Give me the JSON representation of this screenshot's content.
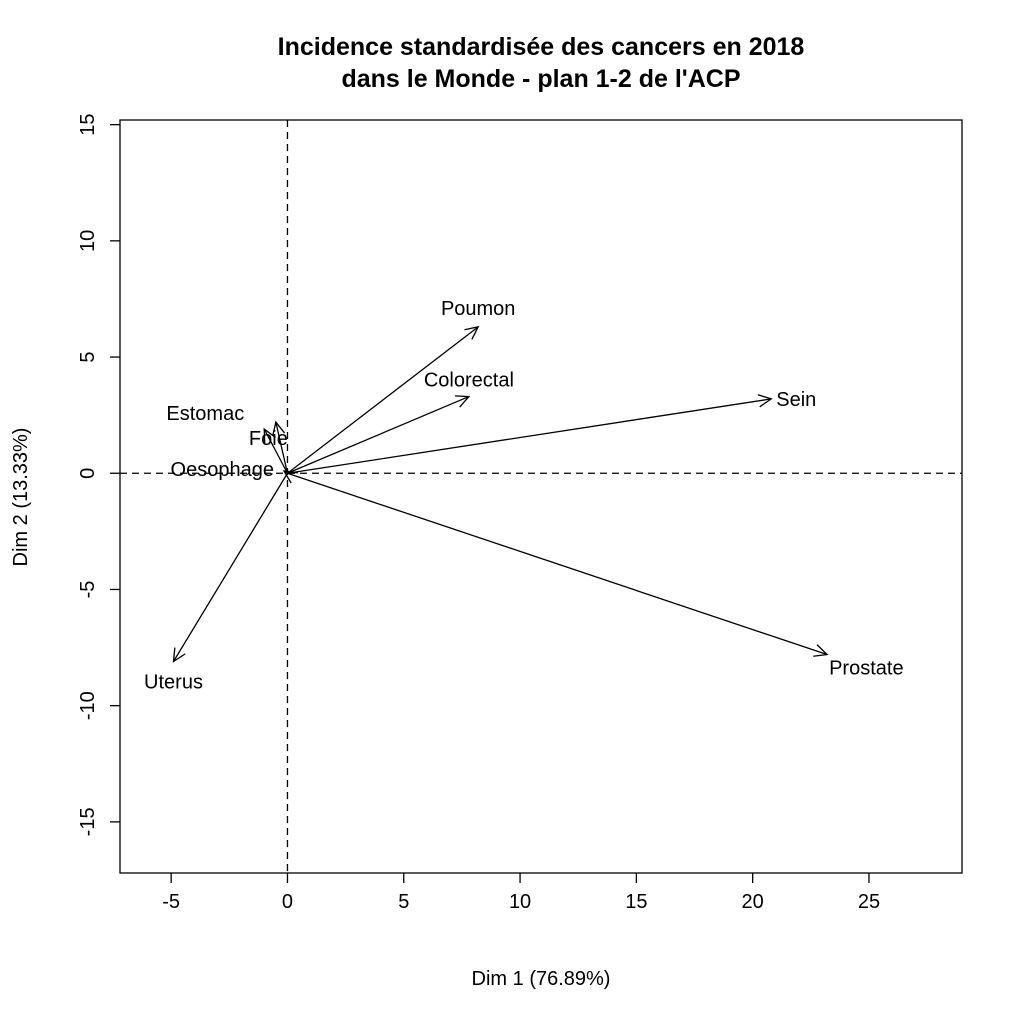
{
  "chart_data": {
    "type": "scatter",
    "subtype": "pca-variable-factor-map",
    "title_line1": "Incidence standardisée des cancers en 2018",
    "title_line2": "dans le Monde - plan 1-2 de l'ACP",
    "xlabel": "Dim 1 (76.89%)",
    "ylabel": "Dim 2 (13.33%)",
    "xlim": [
      -7.2,
      29
    ],
    "ylim": [
      -17.2,
      15.2
    ],
    "x_ticks": [
      -5,
      0,
      5,
      10,
      15,
      20,
      25
    ],
    "y_ticks": [
      -15,
      -10,
      -5,
      0,
      5,
      10,
      15
    ],
    "reference_lines": {
      "x": 0,
      "y": 0,
      "style": "dashed"
    },
    "grid": false,
    "legend": "none",
    "variables": [
      {
        "name": "Poumon",
        "x": 8.2,
        "y": 6.3
      },
      {
        "name": "Colorectal",
        "x": 7.8,
        "y": 3.3
      },
      {
        "name": "Sein",
        "x": 20.8,
        "y": 3.2
      },
      {
        "name": "Estomac",
        "x": -1.0,
        "y": 1.9
      },
      {
        "name": "Foie",
        "x": -0.5,
        "y": 2.2
      },
      {
        "name": "Oesophage",
        "x": -0.15,
        "y": 0.1
      },
      {
        "name": "Uterus",
        "x": -4.9,
        "y": -8.1
      },
      {
        "name": "Prostate",
        "x": 23.2,
        "y": -7.8
      }
    ]
  }
}
